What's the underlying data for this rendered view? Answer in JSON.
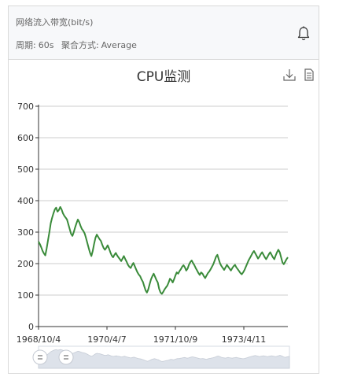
{
  "header": {
    "metric_title": "网络流入带宽(bit/s)",
    "period_label": "周期:",
    "period_value": "60s",
    "agg_label": "聚合方式:",
    "agg_value": "Average"
  },
  "icons": {
    "alarm": "bell-icon",
    "download": "download-icon",
    "data_view": "document-icon"
  },
  "colors": {
    "series": "#3a8b3a",
    "grid": "#cccccc",
    "slider_fill": "#dde2ea",
    "slider_handle": "#ffffff"
  },
  "chart_data": {
    "type": "line",
    "title": "CPU监测",
    "ylim": [
      0,
      700
    ],
    "yticks": [
      0,
      100,
      200,
      300,
      400,
      500,
      600,
      700
    ],
    "xtick_labels": [
      "1968/10/4",
      "1970/4/7",
      "1971/10/9",
      "1973/4/11"
    ],
    "grid": true,
    "series": [
      {
        "values": [
          270,
          262,
          252,
          240,
          232,
          226,
          248,
          275,
          300,
          328,
          345,
          360,
          372,
          378,
          365,
          370,
          380,
          372,
          360,
          352,
          346,
          340,
          325,
          310,
          295,
          288,
          300,
          315,
          328,
          340,
          332,
          320,
          310,
          304,
          296,
          282,
          266,
          250,
          234,
          224,
          240,
          262,
          282,
          292,
          285,
          278,
          272,
          260,
          250,
          244,
          250,
          258,
          248,
          236,
          226,
          220,
          228,
          234,
          226,
          220,
          214,
          208,
          216,
          224,
          214,
          206,
          196,
          190,
          186,
          195,
          202,
          192,
          182,
          172,
          165,
          160,
          150,
          142,
          128,
          115,
          108,
          118,
          135,
          150,
          160,
          168,
          158,
          148,
          140,
          120,
          108,
          104,
          110,
          118,
          124,
          130,
          140,
          152,
          148,
          140,
          150,
          162,
          172,
          168,
          176,
          182,
          190,
          195,
          188,
          178,
          184,
          196,
          205,
          210,
          202,
          195,
          186,
          178,
          170,
          164,
          172,
          168,
          160,
          154,
          162,
          170,
          175,
          182,
          190,
          198,
          210,
          222,
          228,
          214,
          200,
          192,
          186,
          180,
          188,
          196,
          190,
          184,
          178,
          186,
          192,
          196,
          188,
          182,
          176,
          170,
          166,
          172,
          180,
          190,
          200,
          210,
          218,
          226,
          234,
          240,
          232,
          224,
          216,
          222,
          230,
          236,
          228,
          220,
          214,
          222,
          230,
          236,
          228,
          220,
          214,
          226,
          236,
          244,
          236,
          220,
          204,
          198,
          206,
          214,
          220
        ]
      }
    ]
  }
}
